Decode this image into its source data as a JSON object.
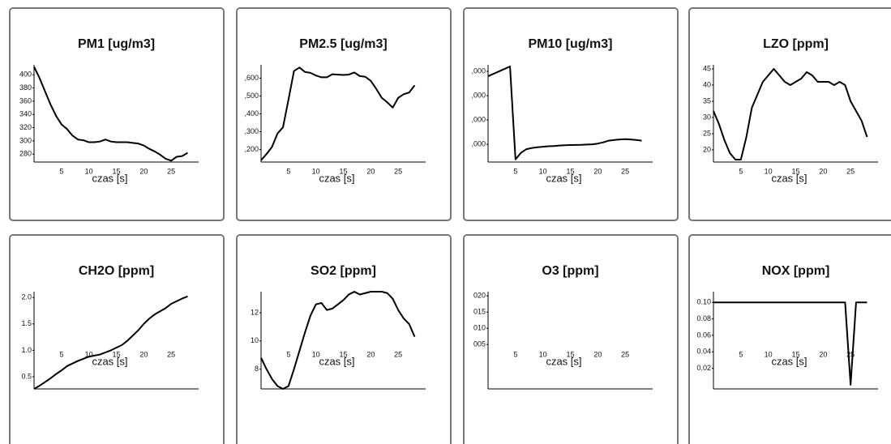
{
  "chart_data": [
    {
      "type": "line",
      "title": "PM1 [ug/m3]",
      "x_label": "czas [s]",
      "color": "#000000",
      "x": [
        0,
        1,
        2,
        3,
        4,
        5,
        6,
        7,
        8,
        9,
        10,
        11,
        12,
        13,
        14,
        15,
        16,
        17,
        18,
        19,
        20,
        21,
        22,
        23,
        24,
        25,
        26,
        27,
        28
      ],
      "values": [
        412,
        395,
        375,
        355,
        338,
        325,
        318,
        308,
        302,
        301,
        298,
        298,
        299,
        302,
        299,
        298,
        298,
        298,
        297,
        296,
        293,
        288,
        284,
        279,
        273,
        270,
        276,
        277,
        282
      ],
      "xlim": [
        0,
        30
      ],
      "xticks": [
        5,
        10,
        15,
        20,
        25
      ],
      "ylim": [
        268,
        415
      ],
      "yticks": [
        280,
        300,
        320,
        340,
        360,
        380,
        400
      ]
    },
    {
      "type": "line",
      "title": "PM2.5 [ug/m3]",
      "x_label": "czas [s]",
      "color": "#000000",
      "x": [
        0,
        1,
        2,
        3,
        4,
        5,
        6,
        7,
        8,
        9,
        10,
        11,
        12,
        13,
        14,
        15,
        16,
        17,
        18,
        19,
        20,
        21,
        22,
        23,
        24,
        25,
        26,
        27,
        28
      ],
      "values": [
        140,
        175,
        215,
        290,
        325,
        480,
        640,
        660,
        635,
        630,
        615,
        605,
        605,
        622,
        620,
        618,
        620,
        632,
        612,
        608,
        585,
        540,
        490,
        465,
        435,
        490,
        510,
        520,
        560
      ],
      "xlim": [
        0,
        30
      ],
      "xticks": [
        5,
        10,
        15,
        20,
        25
      ],
      "ylim": [
        130,
        675
      ],
      "yticks": [
        {
          "value": 200,
          "label": ",200"
        },
        {
          "value": 300,
          "label": ",300"
        },
        {
          "value": 400,
          "label": ",400"
        },
        {
          "value": 500,
          "label": ",500"
        },
        {
          "value": 600,
          "label": ",600"
        }
      ]
    },
    {
      "type": "line",
      "title": "PM10 [ug/m3]",
      "x_label": "czas [s]",
      "color": "#000000",
      "x": [
        0,
        1,
        2,
        3,
        4,
        5,
        6,
        7,
        8,
        9,
        10,
        11,
        12,
        13,
        14,
        15,
        16,
        17,
        18,
        19,
        20,
        21,
        22,
        23,
        24,
        25,
        26,
        27,
        28
      ],
      "values": [
        3800,
        3900,
        4000,
        4100,
        4200,
        380,
        650,
        800,
        850,
        880,
        900,
        920,
        930,
        950,
        960,
        970,
        975,
        980,
        990,
        1000,
        1030,
        1080,
        1150,
        1180,
        1200,
        1210,
        1200,
        1180,
        1150
      ],
      "xlim": [
        0,
        30
      ],
      "xticks": [
        5,
        10,
        15,
        20,
        25
      ],
      "ylim": [
        270,
        4270
      ],
      "yticks": [
        {
          "value": 1000,
          "label": ",000"
        },
        {
          "value": 2000,
          "label": ",000"
        },
        {
          "value": 3000,
          "label": ",000"
        },
        {
          "value": 4000,
          "label": ",000"
        }
      ]
    },
    {
      "type": "line",
      "title": "LZO [ppm]",
      "x_label": "czas [s]",
      "color": "#000000",
      "x": [
        0,
        1,
        2,
        3,
        4,
        5,
        6,
        7,
        8,
        9,
        10,
        11,
        12,
        13,
        14,
        15,
        16,
        17,
        18,
        19,
        20,
        21,
        22,
        23,
        24,
        25,
        26,
        27,
        28
      ],
      "values": [
        32,
        28,
        23,
        19,
        17,
        17,
        24,
        33,
        37,
        41,
        43,
        45,
        43,
        41,
        40,
        41,
        42,
        44,
        43,
        41,
        41,
        41,
        40,
        41,
        40,
        35,
        32,
        29,
        24
      ],
      "xlim": [
        0,
        30
      ],
      "xticks": [
        5,
        10,
        15,
        20,
        25
      ],
      "ylim": [
        16.25,
        46.25
      ],
      "yticks": [
        20,
        25,
        30,
        35,
        40,
        45
      ]
    },
    {
      "type": "line",
      "title": "CH2O [ppm]",
      "x_label": "czas [s]",
      "color": "#000000",
      "x": [
        0,
        1,
        2,
        3,
        4,
        5,
        6,
        7,
        8,
        9,
        10,
        11,
        12,
        13,
        14,
        15,
        16,
        17,
        18,
        19,
        20,
        21,
        22,
        23,
        24,
        25,
        26,
        27,
        28
      ],
      "values": [
        0.27,
        0.33,
        0.4,
        0.47,
        0.55,
        0.62,
        0.7,
        0.75,
        0.8,
        0.84,
        0.88,
        0.9,
        0.92,
        0.96,
        1.0,
        1.05,
        1.1,
        1.18,
        1.28,
        1.38,
        1.5,
        1.6,
        1.68,
        1.74,
        1.8,
        1.88,
        1.93,
        1.98,
        2.02
      ],
      "xlim": [
        0,
        30
      ],
      "xticks": [
        5,
        10,
        15,
        20,
        25
      ],
      "ylim": [
        0.27,
        2.11
      ],
      "yticks": [
        0.5,
        {
          "value": 1,
          "label": "1.0"
        },
        1.5,
        {
          "value": 2,
          "label": "2.0"
        }
      ]
    },
    {
      "type": "line",
      "title": "SO2 [ppm]",
      "x_label": "czas [s]",
      "color": "#000000",
      "x": [
        0,
        1,
        2,
        3,
        4,
        5,
        6,
        7,
        8,
        9,
        10,
        11,
        12,
        13,
        14,
        15,
        16,
        17,
        18,
        19,
        20,
        21,
        22,
        23,
        24,
        25,
        26,
        27,
        28
      ],
      "values": [
        8.8,
        8.0,
        7.3,
        6.8,
        6.6,
        6.8,
        8.0,
        9.3,
        10.6,
        11.8,
        12.6,
        12.7,
        12.2,
        12.3,
        12.6,
        12.9,
        13.3,
        13.5,
        13.3,
        13.4,
        13.5,
        13.5,
        13.5,
        13.4,
        13.0,
        12.2,
        11.6,
        11.2,
        10.3
      ],
      "xlim": [
        0,
        30
      ],
      "xticks": [
        5,
        10,
        15,
        20,
        25
      ],
      "ylim": [
        6.6,
        13.5
      ],
      "yticks": [
        8,
        10,
        12
      ]
    },
    {
      "type": "line",
      "title": "O3 [ppm]",
      "x_label": "czas [s]",
      "color": "#000000",
      "x": [],
      "values": [],
      "xlim": [
        0,
        30
      ],
      "xticks": [
        5,
        10,
        15,
        20,
        25
      ],
      "ylim": [
        -0.0087,
        0.0213
      ],
      "yticks": [
        {
          "value": 0.005,
          "label": "005"
        },
        {
          "value": 0.01,
          "label": "010"
        },
        {
          "value": 0.015,
          "label": "015"
        },
        {
          "value": 0.02,
          "label": "020"
        }
      ]
    },
    {
      "type": "line",
      "title": "NOX [ppm]",
      "x_label": "czas [s]",
      "color": "#000000",
      "x": [
        0,
        1,
        2,
        3,
        4,
        5,
        6,
        7,
        8,
        9,
        10,
        11,
        12,
        13,
        14,
        15,
        16,
        17,
        18,
        19,
        20,
        21,
        22,
        23,
        24,
        25,
        26,
        27,
        28
      ],
      "values": [
        0.1,
        0.1,
        0.1,
        0.1,
        0.1,
        0.1,
        0.1,
        0.1,
        0.1,
        0.1,
        0.1,
        0.1,
        0.1,
        0.1,
        0.1,
        0.1,
        0.1,
        0.1,
        0.1,
        0.1,
        0.1,
        0.1,
        0.1,
        0.1,
        0.1,
        0,
        0.1,
        0.1,
        0.1
      ],
      "xlim": [
        0,
        30
      ],
      "xticks": [
        5,
        10,
        15,
        20,
        25
      ],
      "ylim": [
        -0.005,
        0.113
      ],
      "yticks": [
        {
          "value": 0.02,
          "label": "0.02"
        },
        {
          "value": 0.04,
          "label": "0.04"
        },
        {
          "value": 0.06,
          "label": "0.06"
        },
        {
          "value": 0.08,
          "label": "0.08"
        },
        {
          "value": 0.1,
          "label": "0.10"
        }
      ]
    }
  ]
}
